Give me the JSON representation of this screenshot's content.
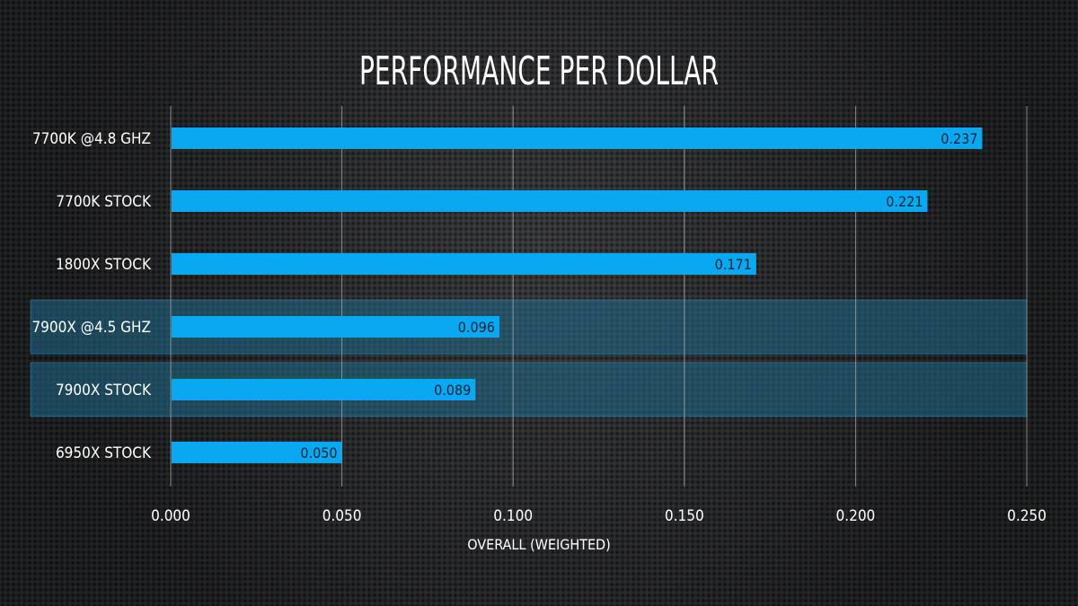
{
  "chart_data": {
    "type": "bar",
    "orientation": "horizontal",
    "title": "PERFORMANCE PER DOLLAR",
    "xlabel": "OVERALL (WEIGHTED)",
    "ylabel": "",
    "categories": [
      "7700K @4.8 GHZ",
      "7700K STOCK",
      "1800X STOCK",
      "7900X @4.5 GHZ",
      "7900X STOCK",
      "6950X STOCK"
    ],
    "values": [
      0.237,
      0.221,
      0.171,
      0.096,
      0.089,
      0.05
    ],
    "value_labels": [
      "0.237",
      "0.221",
      "0.171",
      "0.096",
      "0.089",
      "0.050"
    ],
    "highlighted": [
      false,
      false,
      false,
      true,
      true,
      false
    ],
    "xlim": [
      0,
      0.25
    ],
    "xticks": [
      "0.000",
      "0.050",
      "0.100",
      "0.150",
      "0.200",
      "0.250"
    ],
    "grid": true,
    "colors": {
      "bar": "#0aa8f0",
      "highlight": "#1f6b8c",
      "text": "#ffffff",
      "value_text": "#0d2233",
      "grid": "#9aa0a6"
    }
  }
}
